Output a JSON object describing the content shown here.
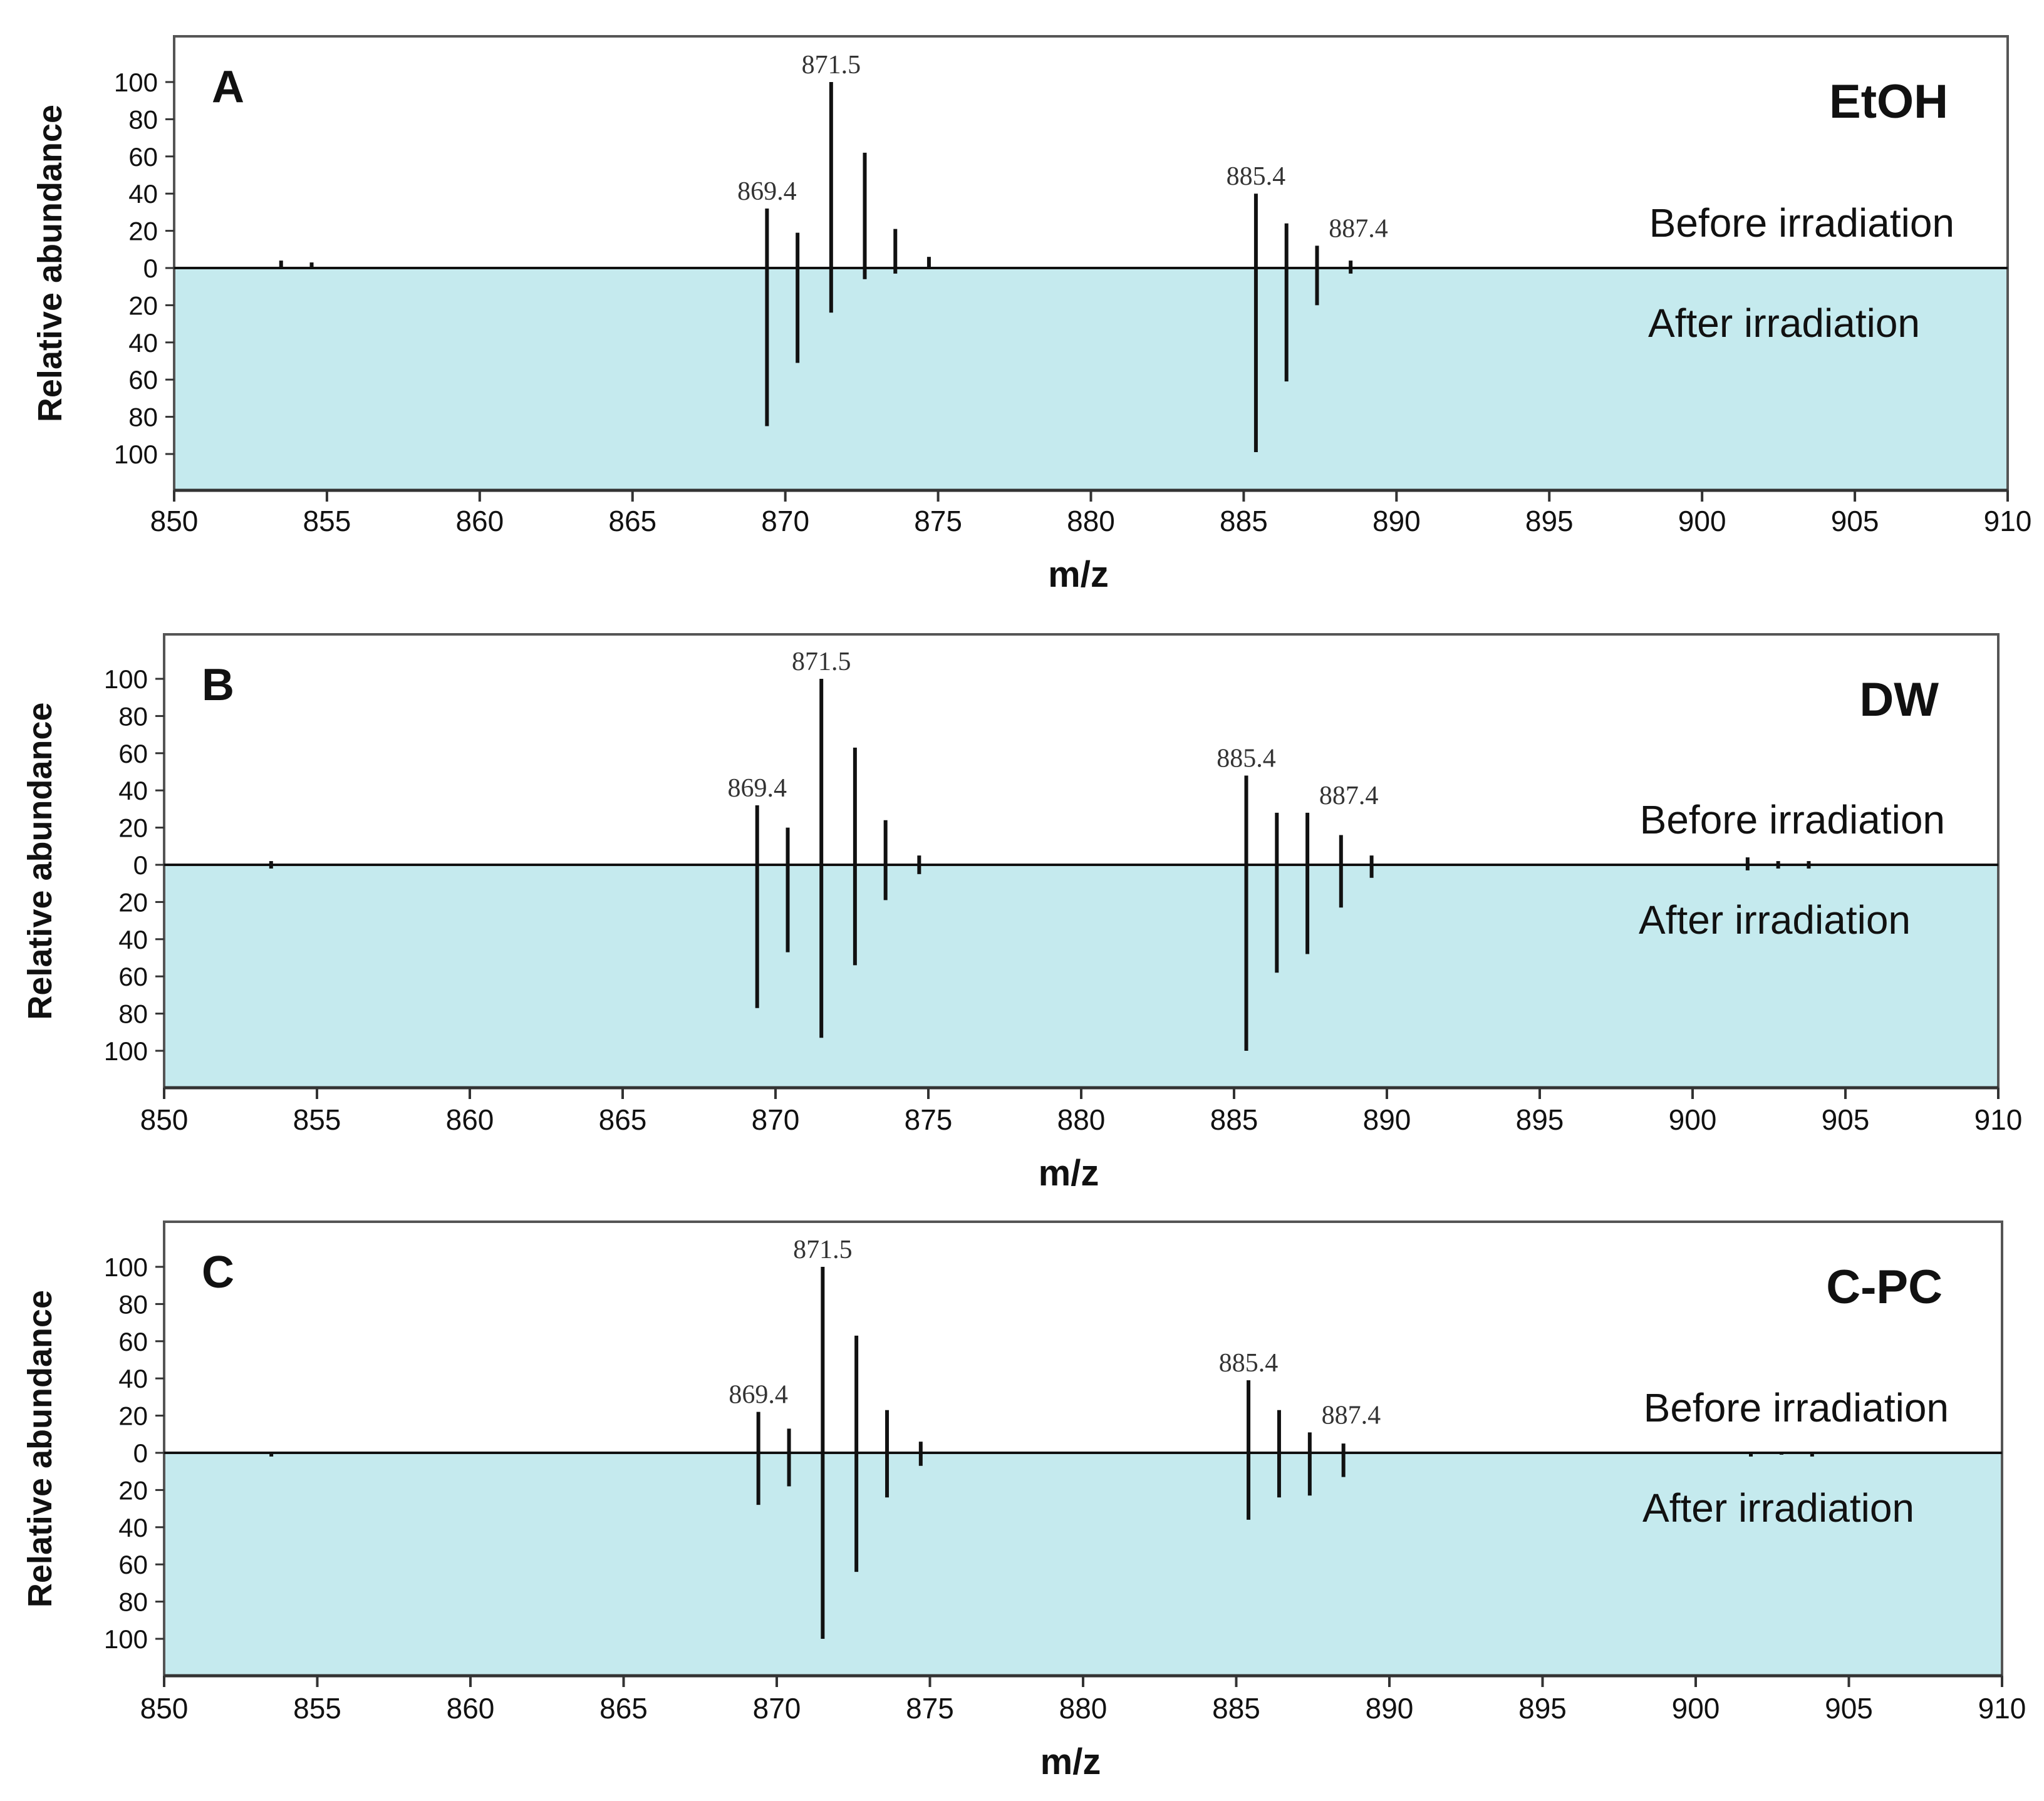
{
  "chart_data": [
    {
      "type": "mirror-stick",
      "panel": "A",
      "title": "EtOH",
      "xlabel": "m/z",
      "ylabel": "Relative abundance",
      "top_label": "Before irradiation",
      "bottom_label": "After irradiation",
      "xlim": [
        850,
        910
      ],
      "x_ticks": [
        "850",
        "855",
        "860",
        "865",
        "870",
        "875",
        "880",
        "885",
        "890",
        "895",
        "900",
        "905",
        "910"
      ],
      "y_ticks": [
        "100",
        "80",
        "60",
        "40",
        "20",
        "0",
        "20",
        "40",
        "60",
        "80",
        "100"
      ],
      "colors": {
        "after_fill": "#c5eaee",
        "stick": "#111111"
      },
      "before": [
        {
          "mz": 853.5,
          "ab": 4
        },
        {
          "mz": 854.5,
          "ab": 3
        },
        {
          "mz": 869.4,
          "ab": 32
        },
        {
          "mz": 870.4,
          "ab": 19
        },
        {
          "mz": 871.5,
          "ab": 100
        },
        {
          "mz": 872.6,
          "ab": 62
        },
        {
          "mz": 873.6,
          "ab": 21
        },
        {
          "mz": 874.7,
          "ab": 6
        },
        {
          "mz": 885.4,
          "ab": 40
        },
        {
          "mz": 886.4,
          "ab": 24
        },
        {
          "mz": 887.4,
          "ab": 12
        },
        {
          "mz": 888.5,
          "ab": 4
        }
      ],
      "after": [
        {
          "mz": 869.4,
          "ab": 85
        },
        {
          "mz": 870.4,
          "ab": 51
        },
        {
          "mz": 871.5,
          "ab": 24
        },
        {
          "mz": 872.6,
          "ab": 6
        },
        {
          "mz": 873.6,
          "ab": 3
        },
        {
          "mz": 885.4,
          "ab": 99
        },
        {
          "mz": 886.4,
          "ab": 61
        },
        {
          "mz": 887.4,
          "ab": 20
        },
        {
          "mz": 888.5,
          "ab": 3
        }
      ],
      "peak_labels": [
        {
          "text": "869.4",
          "mz": 869.4,
          "ab": 32
        },
        {
          "text": "871.5",
          "mz": 871.5,
          "ab": 100
        },
        {
          "text": "885.4",
          "mz": 885.4,
          "ab": 40
        },
        {
          "text": "887.4",
          "mz": 887.4,
          "ab": 12
        }
      ]
    },
    {
      "type": "mirror-stick",
      "panel": "B",
      "title": "DW",
      "xlabel": "m/z",
      "ylabel": "Relative abundance",
      "top_label": "Before irradiation",
      "bottom_label": "After irradiation",
      "xlim": [
        850,
        910
      ],
      "x_ticks": [
        "850",
        "855",
        "860",
        "865",
        "870",
        "875",
        "880",
        "885",
        "890",
        "895",
        "900",
        "905",
        "910"
      ],
      "y_ticks": [
        "100",
        "80",
        "60",
        "40",
        "20",
        "0",
        "20",
        "40",
        "60",
        "80",
        "100"
      ],
      "colors": {
        "after_fill": "#c5eaee",
        "stick": "#111111"
      },
      "before": [
        {
          "mz": 853.5,
          "ab": 2
        },
        {
          "mz": 869.4,
          "ab": 32
        },
        {
          "mz": 870.4,
          "ab": 20
        },
        {
          "mz": 871.5,
          "ab": 100
        },
        {
          "mz": 872.6,
          "ab": 63
        },
        {
          "mz": 873.6,
          "ab": 24
        },
        {
          "mz": 874.7,
          "ab": 5
        },
        {
          "mz": 885.4,
          "ab": 48
        },
        {
          "mz": 886.4,
          "ab": 28
        },
        {
          "mz": 887.4,
          "ab": 28
        },
        {
          "mz": 888.5,
          "ab": 16
        },
        {
          "mz": 889.5,
          "ab": 5
        },
        {
          "mz": 901.8,
          "ab": 4
        },
        {
          "mz": 902.8,
          "ab": 2
        },
        {
          "mz": 903.8,
          "ab": 2
        }
      ],
      "after": [
        {
          "mz": 853.5,
          "ab": 2
        },
        {
          "mz": 869.4,
          "ab": 77
        },
        {
          "mz": 870.4,
          "ab": 47
        },
        {
          "mz": 871.5,
          "ab": 93
        },
        {
          "mz": 872.6,
          "ab": 54
        },
        {
          "mz": 873.6,
          "ab": 19
        },
        {
          "mz": 874.7,
          "ab": 5
        },
        {
          "mz": 885.4,
          "ab": 100
        },
        {
          "mz": 886.4,
          "ab": 58
        },
        {
          "mz": 887.4,
          "ab": 48
        },
        {
          "mz": 888.5,
          "ab": 23
        },
        {
          "mz": 889.5,
          "ab": 7
        },
        {
          "mz": 901.8,
          "ab": 3
        },
        {
          "mz": 902.8,
          "ab": 2
        },
        {
          "mz": 903.8,
          "ab": 2
        }
      ],
      "peak_labels": [
        {
          "text": "869.4",
          "mz": 869.4,
          "ab": 32
        },
        {
          "text": "871.5",
          "mz": 871.5,
          "ab": 100
        },
        {
          "text": "885.4",
          "mz": 885.4,
          "ab": 48
        },
        {
          "text": "887.4",
          "mz": 887.4,
          "ab": 28
        }
      ]
    },
    {
      "type": "mirror-stick",
      "panel": "C",
      "title": "C-PC",
      "xlabel": "m/z",
      "ylabel": "Relative abundance",
      "top_label": "Before irradiation",
      "bottom_label": "After irradiation",
      "xlim": [
        850,
        910
      ],
      "x_ticks": [
        "850",
        "855",
        "860",
        "865",
        "870",
        "875",
        "880",
        "885",
        "890",
        "895",
        "900",
        "905",
        "910"
      ],
      "y_ticks": [
        "100",
        "80",
        "60",
        "40",
        "20",
        "0",
        "20",
        "40",
        "60",
        "80",
        "100"
      ],
      "colors": {
        "after_fill": "#c5eaee",
        "stick": "#111111"
      },
      "before": [
        {
          "mz": 869.4,
          "ab": 22
        },
        {
          "mz": 870.4,
          "ab": 13
        },
        {
          "mz": 871.5,
          "ab": 100
        },
        {
          "mz": 872.6,
          "ab": 63
        },
        {
          "mz": 873.6,
          "ab": 23
        },
        {
          "mz": 874.7,
          "ab": 6
        },
        {
          "mz": 885.4,
          "ab": 39
        },
        {
          "mz": 886.4,
          "ab": 23
        },
        {
          "mz": 887.4,
          "ab": 11
        },
        {
          "mz": 888.5,
          "ab": 5
        }
      ],
      "after": [
        {
          "mz": 853.5,
          "ab": 2
        },
        {
          "mz": 869.4,
          "ab": 28
        },
        {
          "mz": 870.4,
          "ab": 18
        },
        {
          "mz": 871.5,
          "ab": 100
        },
        {
          "mz": 872.6,
          "ab": 64
        },
        {
          "mz": 873.6,
          "ab": 24
        },
        {
          "mz": 874.7,
          "ab": 7
        },
        {
          "mz": 885.4,
          "ab": 36
        },
        {
          "mz": 886.4,
          "ab": 24
        },
        {
          "mz": 887.4,
          "ab": 23
        },
        {
          "mz": 888.5,
          "ab": 13
        },
        {
          "mz": 901.8,
          "ab": 2
        },
        {
          "mz": 902.8,
          "ab": 1
        },
        {
          "mz": 903.8,
          "ab": 2
        }
      ],
      "peak_labels": [
        {
          "text": "869.4",
          "mz": 869.4,
          "ab": 22
        },
        {
          "text": "871.5",
          "mz": 871.5,
          "ab": 100
        },
        {
          "text": "885.4",
          "mz": 885.4,
          "ab": 39
        },
        {
          "text": "887.4",
          "mz": 887.4,
          "ab": 11
        }
      ]
    }
  ]
}
